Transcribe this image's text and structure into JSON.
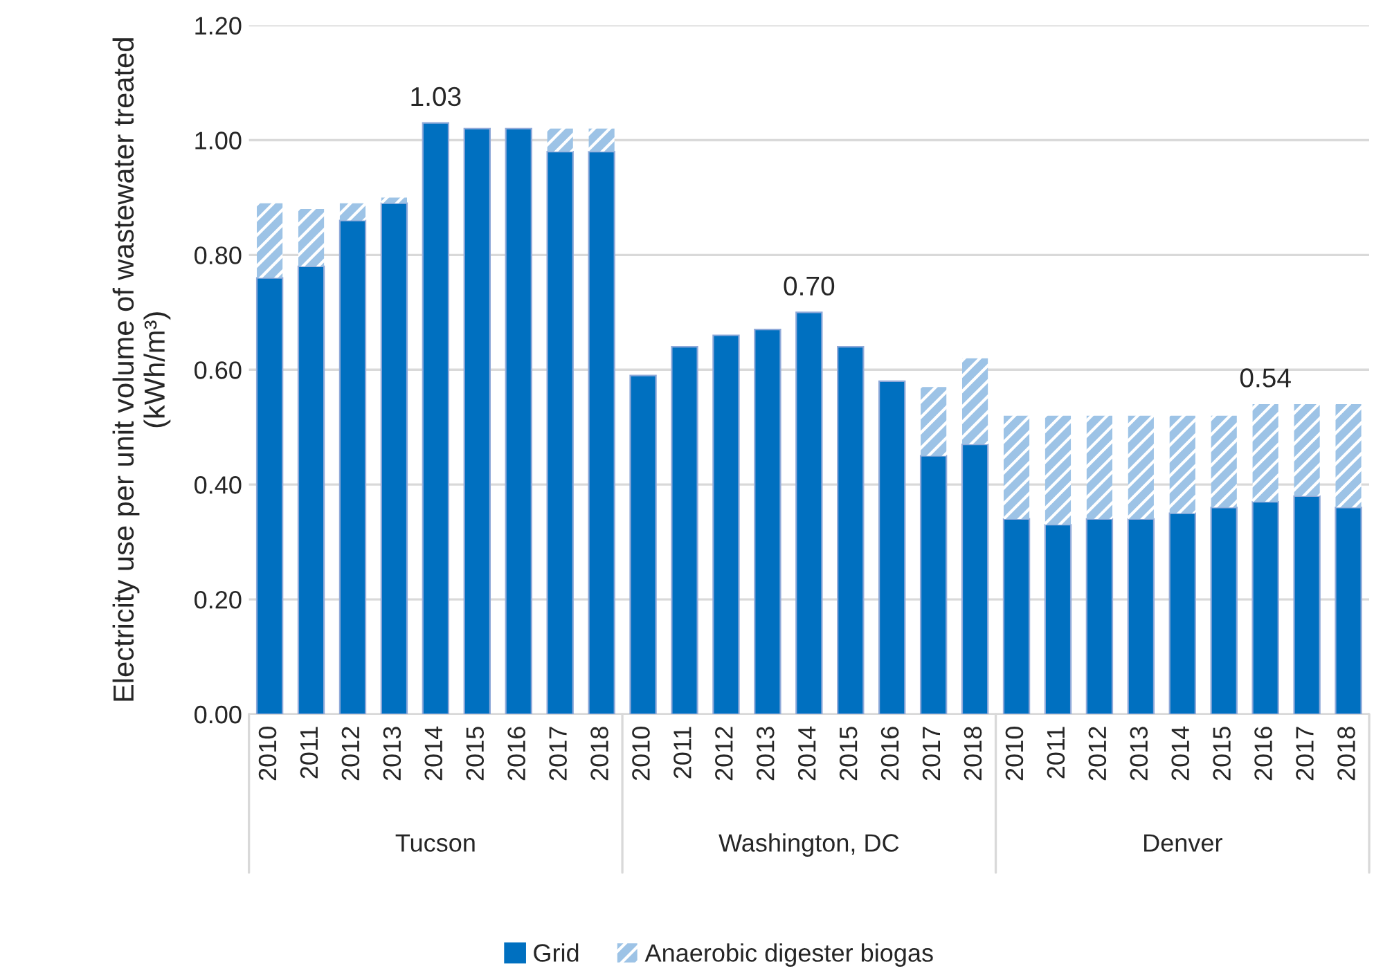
{
  "chart_data": {
    "type": "bar",
    "stacked": true,
    "ylabel": "Electricity use per unit volume of wastewater treated\n(kWh/m³)",
    "categories": [
      "2010",
      "2011",
      "2012",
      "2013",
      "2014",
      "2015",
      "2016",
      "2017",
      "2018",
      "2010",
      "2011",
      "2012",
      "2013",
      "2014",
      "2015",
      "2016",
      "2017",
      "2018",
      "2010",
      "2011",
      "2012",
      "2013",
      "2014",
      "2015",
      "2016",
      "2017",
      "2018"
    ],
    "series": [
      {
        "name": "Grid",
        "color": "#0070c0",
        "values": [
          0.76,
          0.78,
          0.86,
          0.89,
          1.03,
          1.02,
          1.02,
          0.98,
          0.98,
          0.59,
          0.64,
          0.66,
          0.67,
          0.7,
          0.64,
          0.58,
          0.45,
          0.47,
          0.34,
          0.33,
          0.34,
          0.34,
          0.35,
          0.36,
          0.37,
          0.38,
          0.36
        ]
      },
      {
        "name": "Anaerobic digester biogas",
        "color": "#9dc3e6",
        "values": [
          0.13,
          0.1,
          0.03,
          0.01,
          0,
          0,
          0,
          0.04,
          0.04,
          0,
          0,
          0,
          0,
          0,
          0,
          0,
          0.12,
          0.15,
          0.18,
          0.19,
          0.18,
          0.18,
          0.17,
          0.16,
          0.17,
          0.16,
          0.18
        ]
      }
    ],
    "totals": [
      null,
      null,
      null,
      null,
      "1.03",
      null,
      null,
      null,
      null,
      null,
      null,
      null,
      null,
      "0.70",
      null,
      null,
      null,
      null,
      null,
      null,
      null,
      null,
      null,
      null,
      "0.54",
      null,
      null
    ],
    "annotations": [
      "Tucson",
      "Washington, DC",
      "Denver"
    ],
    "ylim": [
      0,
      1.2
    ],
    "yticks": [
      {
        "value": 0,
        "label": "0.00"
      },
      {
        "value": 0.2,
        "label": "0.20"
      },
      {
        "value": 0.4,
        "label": "0.40"
      },
      {
        "value": 0.6,
        "label": "0.60"
      },
      {
        "value": 0.8,
        "label": "0.80"
      },
      {
        "value": 1.0,
        "label": "1.00"
      },
      {
        "value": 1.2,
        "label": "1.20"
      }
    ],
    "grid": "y",
    "legend": "bottom"
  }
}
